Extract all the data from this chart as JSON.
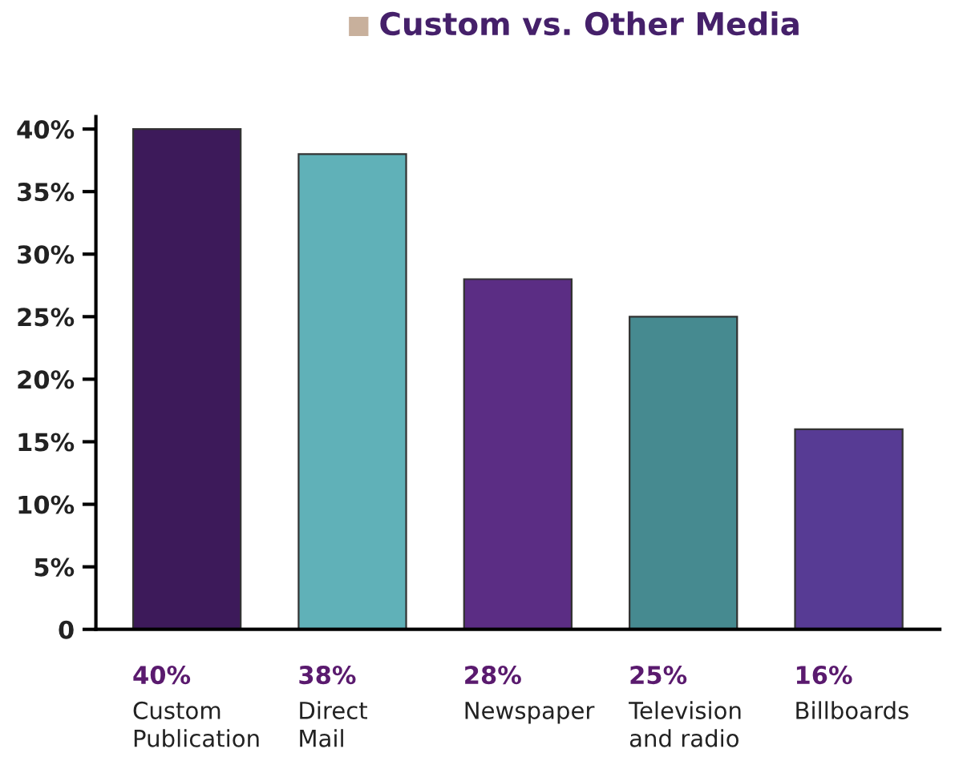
{
  "chart_data": {
    "type": "bar",
    "title": "Custom vs. Other Media",
    "categories": [
      "Custom\nPublication",
      "Direct\nMail",
      "Newspaper",
      "Television\nand radio",
      "Billboards"
    ],
    "values": [
      40,
      38,
      28,
      25,
      16
    ],
    "colors": [
      "#3d1a5a",
      "#60b1b8",
      "#5b2d84",
      "#468a90",
      "#573b94"
    ],
    "value_labels": [
      "40%",
      "38%",
      "28%",
      "25%",
      "16%"
    ],
    "ylim": [
      0,
      41
    ],
    "yticks": [
      {
        "value": 0,
        "label": "0"
      },
      {
        "value": 5,
        "label": "5%"
      },
      {
        "value": 10,
        "label": "10%"
      },
      {
        "value": 15,
        "label": "15%"
      },
      {
        "value": 20,
        "label": "20%"
      },
      {
        "value": 25,
        "label": "25%"
      },
      {
        "value": 30,
        "label": "30%"
      },
      {
        "value": 35,
        "label": "35%"
      },
      {
        "value": 40,
        "label": "40%"
      }
    ],
    "grid": false,
    "legend": false
  }
}
